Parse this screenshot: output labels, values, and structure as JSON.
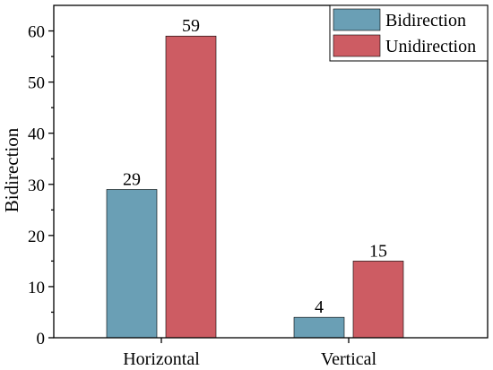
{
  "chart_data": {
    "type": "bar",
    "categories": [
      "Horizontal",
      "Vertical"
    ],
    "series": [
      {
        "name": "Bidirection",
        "values": [
          29,
          4
        ],
        "color": "#6a9fb5"
      },
      {
        "name": "Unidirection",
        "values": [
          59,
          15
        ],
        "color": "#cd5c63"
      }
    ],
    "ylabel": "Bidirection",
    "xlabel": "",
    "ylim": [
      0,
      65
    ],
    "yticks": [
      0,
      10,
      20,
      30,
      40,
      50,
      60
    ],
    "legend": "top-right",
    "grid": false,
    "data_labels": true
  }
}
